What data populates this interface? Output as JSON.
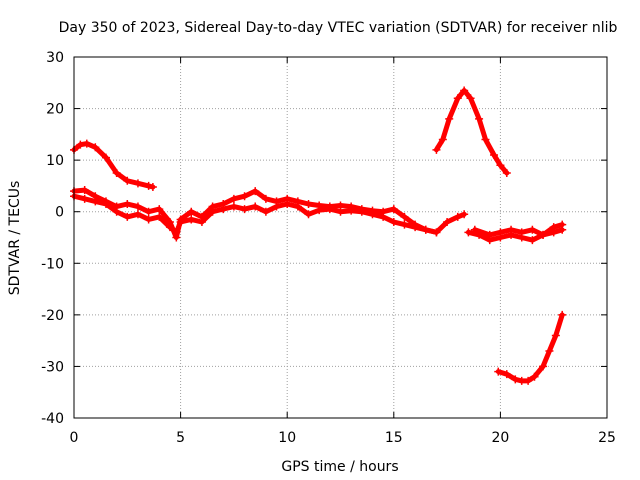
{
  "chart_data": {
    "type": "scatter",
    "title": "Day 350 of 2023, Sidereal Day-to-day VTEC variation (SDTVAR) for receiver nlib",
    "xlabel": "GPS time / hours",
    "ylabel": "SDTVAR / TECUs",
    "xlim": [
      0,
      25
    ],
    "ylim": [
      -40,
      30
    ],
    "xticks": [
      0,
      5,
      10,
      15,
      20,
      25
    ],
    "yticks": [
      -40,
      -30,
      -20,
      -10,
      0,
      10,
      20,
      30
    ],
    "grid": true,
    "colors": {
      "series": "#ff0000",
      "grid": "#a0a0a0",
      "axis": "#000000"
    },
    "series": [
      {
        "name": "early arc",
        "points": [
          [
            0,
            12
          ],
          [
            0.3,
            13
          ],
          [
            0.6,
            13.2
          ],
          [
            1,
            12.5
          ],
          [
            1.5,
            10.5
          ],
          [
            2,
            7.5
          ],
          [
            2.5,
            6
          ],
          [
            3,
            5.5
          ],
          [
            3.5,
            5
          ],
          [
            3.7,
            4.8
          ]
        ]
      },
      {
        "name": "main track A",
        "points": [
          [
            0,
            4
          ],
          [
            0.5,
            4.2
          ],
          [
            1,
            3
          ],
          [
            1.5,
            2
          ],
          [
            2,
            1
          ],
          [
            2.5,
            1.5
          ],
          [
            3,
            1
          ],
          [
            3.5,
            0
          ],
          [
            4,
            0.5
          ],
          [
            4.5,
            -2
          ],
          [
            4.8,
            -5
          ],
          [
            5,
            -1.5
          ],
          [
            5.5,
            0
          ],
          [
            6,
            -1
          ],
          [
            6.5,
            1
          ],
          [
            7,
            1.5
          ],
          [
            7.5,
            2.5
          ],
          [
            8,
            3
          ],
          [
            8.5,
            4
          ],
          [
            9,
            2.5
          ],
          [
            9.5,
            2
          ],
          [
            10,
            2.5
          ],
          [
            10.5,
            2
          ],
          [
            11,
            1.5
          ],
          [
            11.5,
            1.2
          ],
          [
            12,
            1
          ],
          [
            12.5,
            1.2
          ],
          [
            13,
            1
          ],
          [
            13.5,
            0.5
          ],
          [
            14,
            0.2
          ],
          [
            14.5,
            0
          ],
          [
            15,
            0.5
          ],
          [
            15.5,
            -1
          ],
          [
            16,
            -2.5
          ],
          [
            16.5,
            -3.5
          ],
          [
            17,
            -4
          ],
          [
            17.5,
            -2
          ],
          [
            18,
            -1
          ],
          [
            18.3,
            -0.5
          ]
        ]
      },
      {
        "name": "main track B",
        "points": [
          [
            0,
            3
          ],
          [
            0.5,
            2.5
          ],
          [
            1,
            2
          ],
          [
            1.5,
            1.5
          ],
          [
            2,
            0
          ],
          [
            2.5,
            -1
          ],
          [
            3,
            -0.5
          ],
          [
            3.5,
            -1.5
          ],
          [
            4,
            -1
          ],
          [
            4.5,
            -3
          ],
          [
            4.8,
            -4
          ],
          [
            5,
            -2
          ],
          [
            5.5,
            -1.5
          ],
          [
            6,
            -2
          ],
          [
            6.5,
            0
          ],
          [
            7,
            0.5
          ],
          [
            7.5,
            1
          ],
          [
            8,
            0.5
          ],
          [
            8.5,
            1
          ],
          [
            9,
            0
          ],
          [
            9.5,
            1
          ],
          [
            10,
            1.5
          ],
          [
            10.5,
            1
          ],
          [
            11,
            -0.5
          ],
          [
            11.5,
            0.3
          ],
          [
            12,
            0.5
          ],
          [
            12.5,
            0
          ],
          [
            13,
            0.2
          ],
          [
            13.5,
            0
          ],
          [
            14,
            -0.5
          ],
          [
            14.5,
            -1
          ],
          [
            15,
            -2
          ],
          [
            15.5,
            -2.5
          ],
          [
            16,
            -3
          ],
          [
            16.5,
            -3.5
          ],
          [
            17,
            -4
          ]
        ]
      },
      {
        "name": "late low track",
        "points": [
          [
            18.5,
            -4
          ],
          [
            19,
            -4.5
          ],
          [
            19.5,
            -5.5
          ],
          [
            20,
            -5
          ],
          [
            20.5,
            -4.5
          ],
          [
            21,
            -5
          ],
          [
            21.5,
            -5.5
          ],
          [
            22,
            -4.5
          ],
          [
            22.5,
            -4
          ],
          [
            22.9,
            -3.5
          ]
        ]
      },
      {
        "name": "late low track 2",
        "points": [
          [
            18.8,
            -3.5
          ],
          [
            19.5,
            -4.5
          ],
          [
            20,
            -4
          ],
          [
            20.5,
            -3.5
          ],
          [
            21,
            -4
          ],
          [
            21.5,
            -3.5
          ],
          [
            22,
            -4.5
          ],
          [
            22.5,
            -3
          ],
          [
            22.9,
            -2.5
          ]
        ]
      },
      {
        "name": "peak arc",
        "points": [
          [
            17,
            12
          ],
          [
            17.3,
            14
          ],
          [
            17.6,
            18
          ],
          [
            18,
            22
          ],
          [
            18.3,
            23.5
          ],
          [
            18.6,
            22
          ],
          [
            19,
            18
          ],
          [
            19.3,
            14
          ],
          [
            19.7,
            11
          ],
          [
            20,
            9
          ],
          [
            20.3,
            7.5
          ]
        ]
      },
      {
        "name": "deep arc",
        "points": [
          [
            19.9,
            -31
          ],
          [
            20.3,
            -31.5
          ],
          [
            20.7,
            -32.5
          ],
          [
            21,
            -32.8
          ],
          [
            21.3,
            -32.8
          ],
          [
            21.6,
            -32
          ],
          [
            22,
            -30
          ],
          [
            22.3,
            -27
          ],
          [
            22.6,
            -24
          ],
          [
            22.9,
            -20
          ]
        ]
      }
    ]
  }
}
